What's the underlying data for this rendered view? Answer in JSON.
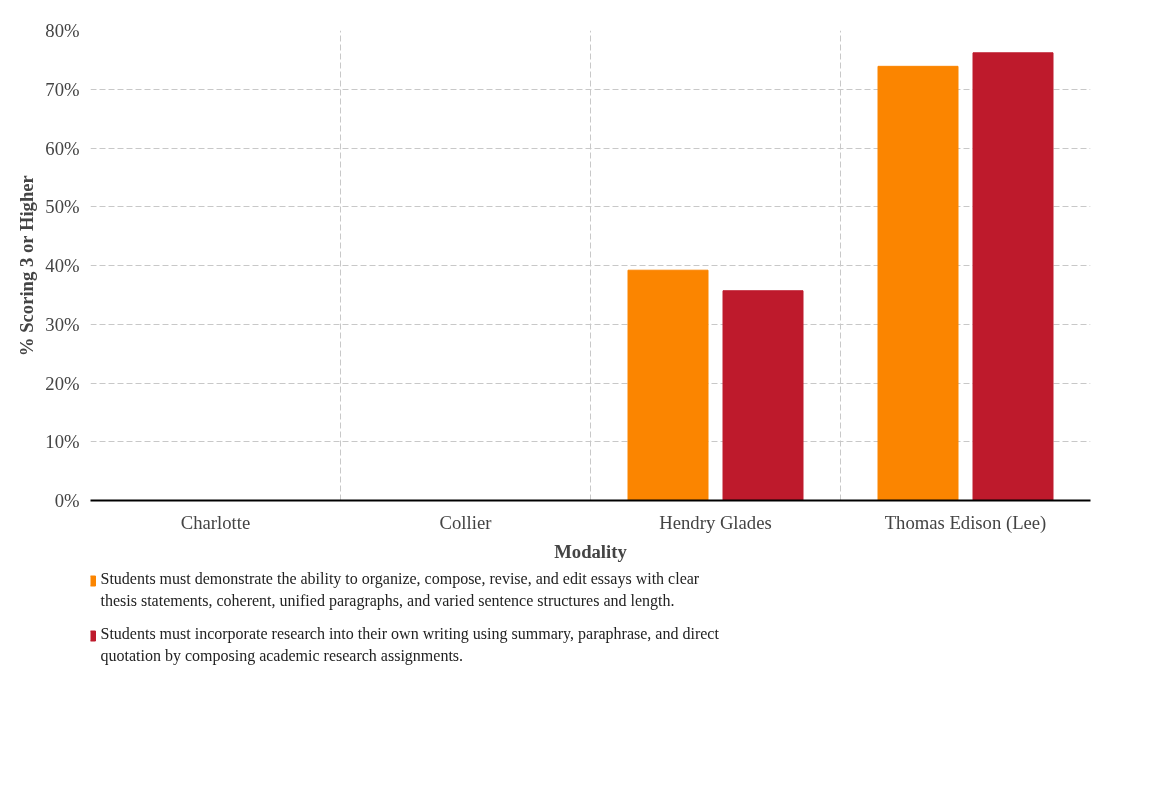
{
  "chart_data": {
    "type": "bar",
    "xlabel": "Modality",
    "ylabel": "% Scoring 3 or Higher",
    "categories": [
      "Charlotte",
      "Collier",
      "Hendry Glades",
      "Thomas Edison (Lee)"
    ],
    "series": [
      {
        "name": "Students must demonstrate the ability to organize, compose, revise, and edit essays with clear thesis statements, coherent, unified paragraphs, and varied sentence structures and length.",
        "color": "#fb8500",
        "values": [
          null,
          null,
          39.2,
          73.9
        ]
      },
      {
        "name": "Students must incorporate research into their own writing using summary, paraphrase, and direct quotation by composing academic research assignments.",
        "color": "#be1a2c",
        "values": [
          null,
          null,
          35.7,
          76.2
        ]
      }
    ],
    "ylim": [
      0,
      80
    ],
    "yticks": [
      {
        "value": 0,
        "label": "0%"
      },
      {
        "value": 10,
        "label": "10%"
      },
      {
        "value": 20,
        "label": "20%"
      },
      {
        "value": 30,
        "label": "30%"
      },
      {
        "value": 40,
        "label": "40%"
      },
      {
        "value": 50,
        "label": "50%"
      },
      {
        "value": 60,
        "label": "60%"
      },
      {
        "value": 70,
        "label": "70%"
      },
      {
        "value": 80,
        "label": "80%"
      }
    ],
    "grid": true,
    "legend": "bottom"
  }
}
